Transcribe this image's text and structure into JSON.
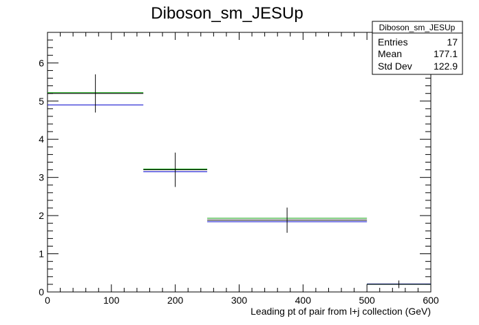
{
  "chart_data": {
    "type": "bar",
    "title": "Diboson_sm_JESUp",
    "xlabel": "Leading pt of pair from l+j collection (GeV)",
    "ylabel": "",
    "xlim": [
      0,
      600
    ],
    "ylim": [
      0,
      6.8
    ],
    "x_ticks": [
      0,
      100,
      200,
      300,
      400,
      500,
      600
    ],
    "y_ticks": [
      0,
      1,
      2,
      3,
      4,
      5,
      6
    ],
    "bins": [
      [
        0,
        150
      ],
      [
        150,
        250
      ],
      [
        250,
        500
      ],
      [
        500,
        600
      ]
    ],
    "series": [
      {
        "color": "#000000",
        "values": [
          5.2,
          3.2,
          1.88,
          0.2
        ],
        "errors": [
          0.5,
          0.45,
          0.33,
          0.1
        ]
      },
      {
        "color": "#009900",
        "values": [
          5.22,
          3.22,
          1.93,
          0.2
        ]
      },
      {
        "color": "#0000cc",
        "values": [
          4.9,
          3.15,
          1.84,
          0.21
        ]
      }
    ],
    "stats": {
      "title": "Diboson_sm_JESUp",
      "rows": [
        {
          "label": "Entries",
          "value": "17"
        },
        {
          "label": "Mean",
          "value": "177.1"
        },
        {
          "label": "Std Dev",
          "value": "122.9"
        }
      ]
    }
  }
}
